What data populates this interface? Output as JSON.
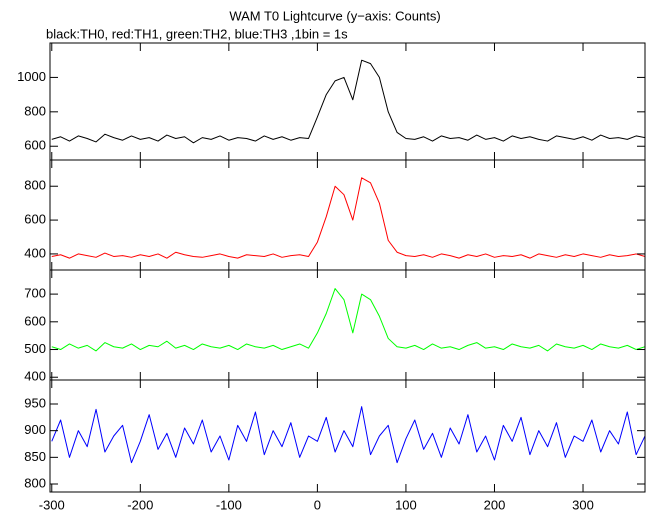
{
  "title": "WAM T0 Lightcurve (y−axis: Counts)",
  "subtitle": "black:TH0, red:TH1, green:TH2, blue:TH3 ,1bin = 1s",
  "chart_data": [
    {
      "type": "line",
      "color": "#000000",
      "x": [
        -300,
        -290,
        -280,
        -270,
        -260,
        -250,
        -240,
        -230,
        -220,
        -210,
        -200,
        -190,
        -180,
        -170,
        -160,
        -150,
        -140,
        -130,
        -120,
        -110,
        -100,
        -90,
        -80,
        -70,
        -60,
        -50,
        -40,
        -30,
        -20,
        -10,
        0,
        10,
        20,
        30,
        40,
        50,
        60,
        70,
        80,
        90,
        100,
        110,
        120,
        130,
        140,
        150,
        160,
        170,
        180,
        190,
        200,
        210,
        220,
        230,
        240,
        250,
        260,
        270,
        280,
        290,
        300,
        310,
        320,
        330,
        340,
        350,
        360,
        370
      ],
      "values": [
        640,
        655,
        630,
        660,
        645,
        625,
        670,
        650,
        635,
        660,
        640,
        650,
        630,
        665,
        645,
        655,
        620,
        650,
        640,
        660,
        635,
        650,
        645,
        630,
        660,
        640,
        655,
        635,
        650,
        645,
        770,
        900,
        980,
        1000,
        870,
        1100,
        1080,
        1000,
        800,
        680,
        645,
        640,
        655,
        630,
        660,
        645,
        650,
        635,
        665,
        640,
        650,
        630,
        660,
        645,
        655,
        640,
        630,
        660,
        650,
        640,
        655,
        635,
        665,
        645,
        650,
        640,
        660,
        650
      ],
      "xlim": [
        -302,
        370
      ],
      "ylim": [
        520,
        1200
      ],
      "yticks": [
        600,
        800,
        1000
      ]
    },
    {
      "type": "line",
      "color": "#ff0000",
      "x": [
        -300,
        -290,
        -280,
        -270,
        -260,
        -250,
        -240,
        -230,
        -220,
        -210,
        -200,
        -190,
        -180,
        -170,
        -160,
        -150,
        -140,
        -130,
        -120,
        -110,
        -100,
        -90,
        -80,
        -70,
        -60,
        -50,
        -40,
        -30,
        -20,
        -10,
        0,
        10,
        20,
        30,
        40,
        50,
        60,
        70,
        80,
        90,
        100,
        110,
        120,
        130,
        140,
        150,
        160,
        170,
        180,
        190,
        200,
        210,
        220,
        230,
        240,
        250,
        260,
        270,
        280,
        290,
        300,
        310,
        320,
        330,
        340,
        350,
        360,
        370
      ],
      "values": [
        385,
        395,
        375,
        400,
        390,
        380,
        405,
        385,
        390,
        380,
        395,
        385,
        400,
        375,
        410,
        395,
        385,
        380,
        390,
        400,
        385,
        375,
        395,
        390,
        385,
        400,
        380,
        390,
        395,
        385,
        470,
        620,
        800,
        750,
        600,
        850,
        820,
        700,
        480,
        410,
        390,
        385,
        395,
        380,
        400,
        390,
        375,
        395,
        385,
        400,
        380,
        390,
        385,
        395,
        375,
        400,
        390,
        380,
        395,
        385,
        400,
        390,
        380,
        395,
        385,
        390,
        400,
        385
      ],
      "xlim": [
        -302,
        370
      ],
      "ylim": [
        305,
        955
      ],
      "yticks": [
        400,
        600,
        800
      ]
    },
    {
      "type": "line",
      "color": "#00ff00",
      "x": [
        -300,
        -290,
        -280,
        -270,
        -260,
        -250,
        -240,
        -230,
        -220,
        -210,
        -200,
        -190,
        -180,
        -170,
        -160,
        -150,
        -140,
        -130,
        -120,
        -110,
        -100,
        -90,
        -80,
        -70,
        -60,
        -50,
        -40,
        -30,
        -20,
        -10,
        0,
        10,
        20,
        30,
        40,
        50,
        60,
        70,
        80,
        90,
        100,
        110,
        120,
        130,
        140,
        150,
        160,
        170,
        180,
        190,
        200,
        210,
        220,
        230,
        240,
        250,
        260,
        270,
        280,
        290,
        300,
        310,
        320,
        330,
        340,
        350,
        360,
        370
      ],
      "values": [
        510,
        500,
        520,
        505,
        515,
        495,
        525,
        510,
        505,
        520,
        500,
        515,
        510,
        530,
        505,
        515,
        500,
        520,
        510,
        505,
        515,
        500,
        520,
        510,
        505,
        515,
        500,
        510,
        520,
        505,
        560,
        630,
        720,
        680,
        560,
        700,
        680,
        620,
        540,
        510,
        505,
        515,
        500,
        520,
        505,
        510,
        500,
        515,
        525,
        505,
        510,
        500,
        520,
        510,
        505,
        515,
        495,
        520,
        510,
        505,
        515,
        500,
        520,
        510,
        505,
        515,
        500,
        510
      ],
      "xlim": [
        -302,
        370
      ],
      "ylim": [
        390,
        787
      ],
      "yticks": [
        400,
        500,
        600,
        700
      ]
    },
    {
      "type": "line",
      "color": "#0000ff",
      "x": [
        -300,
        -290,
        -280,
        -270,
        -260,
        -250,
        -240,
        -230,
        -220,
        -210,
        -200,
        -190,
        -180,
        -170,
        -160,
        -150,
        -140,
        -130,
        -120,
        -110,
        -100,
        -90,
        -80,
        -70,
        -60,
        -50,
        -40,
        -30,
        -20,
        -10,
        0,
        10,
        20,
        30,
        40,
        50,
        60,
        70,
        80,
        90,
        100,
        110,
        120,
        130,
        140,
        150,
        160,
        170,
        180,
        190,
        200,
        210,
        220,
        230,
        240,
        250,
        260,
        270,
        280,
        290,
        300,
        310,
        320,
        330,
        340,
        350,
        360,
        370
      ],
      "values": [
        880,
        920,
        850,
        900,
        870,
        940,
        860,
        890,
        910,
        840,
        880,
        930,
        865,
        895,
        850,
        905,
        875,
        920,
        860,
        890,
        845,
        910,
        880,
        935,
        855,
        900,
        870,
        915,
        850,
        890,
        880,
        925,
        860,
        900,
        870,
        945,
        855,
        890,
        910,
        840,
        885,
        920,
        865,
        895,
        850,
        905,
        875,
        930,
        860,
        890,
        845,
        910,
        880,
        925,
        855,
        900,
        870,
        915,
        850,
        890,
        880,
        920,
        860,
        900,
        875,
        935,
        855,
        890
      ],
      "xlim": [
        -302,
        370
      ],
      "ylim": [
        785,
        995
      ],
      "yticks": [
        800,
        850,
        900,
        950
      ],
      "xticks": [
        -300,
        -200,
        -100,
        0,
        100,
        200,
        300
      ]
    }
  ]
}
